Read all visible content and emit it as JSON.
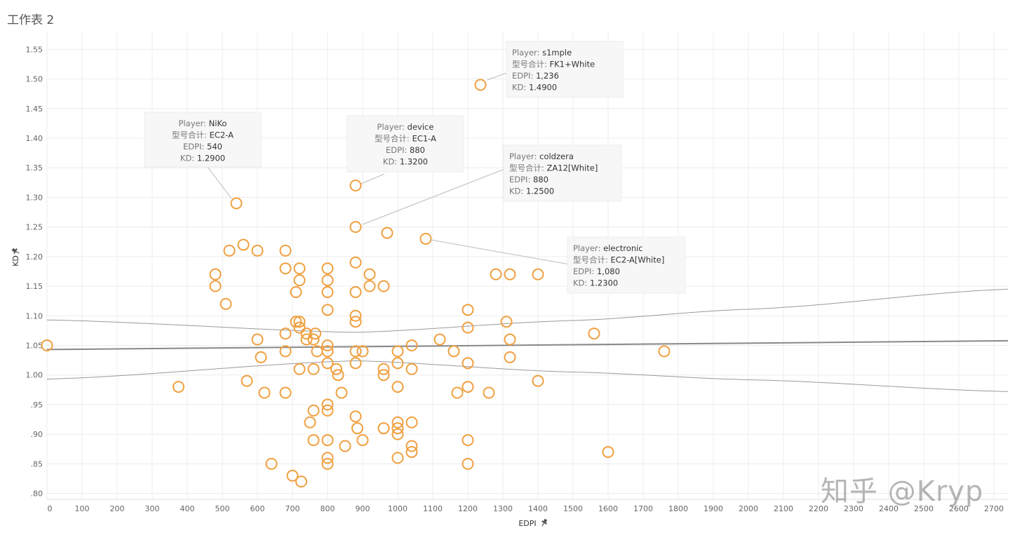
{
  "sheet_title": "工作表 2",
  "watermark": "知乎 @Kryp",
  "colors": {
    "marker": "#F0A040",
    "trend": "#888888",
    "grid": "#ececec"
  },
  "chart_data": {
    "type": "scatter",
    "title": "",
    "xlabel": "EDPI",
    "ylabel": "KD",
    "xlim": [
      0,
      2740
    ],
    "ylim": [
      0.79,
      1.58
    ],
    "x_ticks": [
      0,
      100,
      200,
      300,
      400,
      500,
      600,
      700,
      800,
      900,
      1000,
      1100,
      1200,
      1300,
      1400,
      1500,
      1600,
      1700,
      1800,
      1900,
      2000,
      2100,
      2200,
      2300,
      2400,
      2500,
      2600,
      2700
    ],
    "y_ticks": [
      0.8,
      0.85,
      0.9,
      0.95,
      1.0,
      1.05,
      1.1,
      1.15,
      1.2,
      1.25,
      1.3,
      1.35,
      1.4,
      1.45,
      1.5,
      1.55
    ],
    "y_tick_labels": [
      ".80",
      ".85",
      ".90",
      ".95",
      "1.00",
      "1.05",
      "1.10",
      "1.15",
      "1.20",
      "1.25",
      "1.30",
      "1.35",
      "1.40",
      "1.45",
      "1.50",
      "1.55"
    ],
    "grid": true,
    "points": [
      [
        0,
        1.05
      ],
      [
        375,
        0.98
      ],
      [
        480,
        1.17
      ],
      [
        480,
        1.15
      ],
      [
        510,
        1.12
      ],
      [
        520,
        1.21
      ],
      [
        540,
        1.29
      ],
      [
        560,
        1.22
      ],
      [
        570,
        0.99
      ],
      [
        600,
        1.21
      ],
      [
        600,
        1.06
      ],
      [
        610,
        1.03
      ],
      [
        620,
        0.97
      ],
      [
        640,
        0.85
      ],
      [
        680,
        1.21
      ],
      [
        680,
        1.18
      ],
      [
        680,
        1.07
      ],
      [
        680,
        1.04
      ],
      [
        680,
        0.97
      ],
      [
        700,
        0.83
      ],
      [
        710,
        1.14
      ],
      [
        710,
        1.09
      ],
      [
        720,
        1.09
      ],
      [
        720,
        1.18
      ],
      [
        720,
        1.16
      ],
      [
        720,
        1.08
      ],
      [
        720,
        1.01
      ],
      [
        725,
        0.82
      ],
      [
        740,
        1.07
      ],
      [
        740,
        1.06
      ],
      [
        750,
        0.92
      ],
      [
        760,
        0.94
      ],
      [
        760,
        0.89
      ],
      [
        760,
        1.06
      ],
      [
        760,
        1.01
      ],
      [
        765,
        1.07
      ],
      [
        770,
        1.04
      ],
      [
        800,
        1.18
      ],
      [
        800,
        1.16
      ],
      [
        800,
        1.14
      ],
      [
        800,
        1.11
      ],
      [
        800,
        1.05
      ],
      [
        800,
        1.04
      ],
      [
        800,
        1.02
      ],
      [
        800,
        0.95
      ],
      [
        800,
        0.94
      ],
      [
        800,
        0.89
      ],
      [
        800,
        0.86
      ],
      [
        800,
        0.85
      ],
      [
        825,
        1.01
      ],
      [
        830,
        1.0
      ],
      [
        840,
        0.97
      ],
      [
        850,
        0.88
      ],
      [
        880,
        1.32
      ],
      [
        880,
        1.25
      ],
      [
        880,
        1.19
      ],
      [
        880,
        1.14
      ],
      [
        880,
        1.1
      ],
      [
        880,
        1.09
      ],
      [
        880,
        1.04
      ],
      [
        880,
        1.02
      ],
      [
        880,
        0.93
      ],
      [
        885,
        0.91
      ],
      [
        900,
        1.04
      ],
      [
        900,
        0.89
      ],
      [
        920,
        1.17
      ],
      [
        920,
        1.15
      ],
      [
        960,
        1.15
      ],
      [
        960,
        1.01
      ],
      [
        960,
        1.0
      ],
      [
        960,
        0.91
      ],
      [
        970,
        1.24
      ],
      [
        1000,
        1.04
      ],
      [
        1000,
        1.02
      ],
      [
        1000,
        0.98
      ],
      [
        1000,
        0.92
      ],
      [
        1000,
        0.91
      ],
      [
        1000,
        0.9
      ],
      [
        1000,
        0.86
      ],
      [
        1040,
        1.05
      ],
      [
        1040,
        1.01
      ],
      [
        1040,
        0.92
      ],
      [
        1040,
        0.88
      ],
      [
        1040,
        0.87
      ],
      [
        1080,
        1.23
      ],
      [
        1120,
        1.06
      ],
      [
        1160,
        1.04
      ],
      [
        1170,
        0.97
      ],
      [
        1200,
        1.11
      ],
      [
        1200,
        1.08
      ],
      [
        1200,
        1.02
      ],
      [
        1200,
        0.98
      ],
      [
        1200,
        0.89
      ],
      [
        1200,
        0.85
      ],
      [
        1236,
        1.49
      ],
      [
        1260,
        0.97
      ],
      [
        1280,
        1.17
      ],
      [
        1310,
        1.09
      ],
      [
        1320,
        1.17
      ],
      [
        1320,
        1.06
      ],
      [
        1320,
        1.03
      ],
      [
        1400,
        1.17
      ],
      [
        1400,
        0.99
      ],
      [
        1560,
        1.07
      ],
      [
        1600,
        0.87
      ],
      [
        1760,
        1.04
      ]
    ],
    "trend": {
      "slope": 5.4e-06,
      "intercept": 1.043
    },
    "band_upper": [
      [
        0,
        1.093
      ],
      [
        880,
        1.072
      ],
      [
        1500,
        1.092
      ],
      [
        2000,
        1.111
      ],
      [
        2740,
        1.145
      ]
    ],
    "band_lower": [
      [
        0,
        0.993
      ],
      [
        880,
        1.024
      ],
      [
        1500,
        1.005
      ],
      [
        2000,
        0.992
      ],
      [
        2740,
        0.972
      ]
    ],
    "annotations": [
      {
        "player": "NiKo",
        "model": "EC2-A",
        "edpi": "540",
        "kd": "1.2900",
        "x": 540,
        "y": 1.29
      },
      {
        "player": "device",
        "model": "EC1-A",
        "edpi": "880",
        "kd": "1.3200",
        "x": 880,
        "y": 1.32
      },
      {
        "player": "s1mple",
        "model": "FK1+White",
        "edpi": "1,236",
        "kd": "1.4900",
        "x": 1236,
        "y": 1.49
      },
      {
        "player": "coldzera",
        "model": "ZA12[White]",
        "edpi": "880",
        "kd": "1.2500",
        "x": 880,
        "y": 1.25
      },
      {
        "player": "electronic",
        "model": "EC2-A[White]",
        "edpi": "1,080",
        "kd": "1.2300",
        "x": 1080,
        "y": 1.23
      }
    ],
    "tooltip_keys": {
      "player": "Player:",
      "model": "型号合计:",
      "edpi": "EDPI:",
      "kd": "KD:"
    }
  }
}
